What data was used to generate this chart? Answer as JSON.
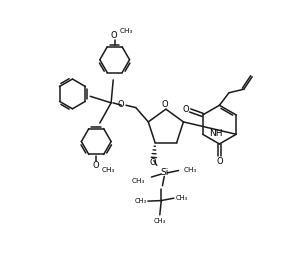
{
  "bg_color": "#ffffff",
  "line_color": "#1a1a1a",
  "line_width": 1.1,
  "figsize": [
    2.99,
    2.79
  ],
  "dpi": 100,
  "xlim": [
    0,
    10
  ],
  "ylim": [
    0,
    9.3
  ]
}
